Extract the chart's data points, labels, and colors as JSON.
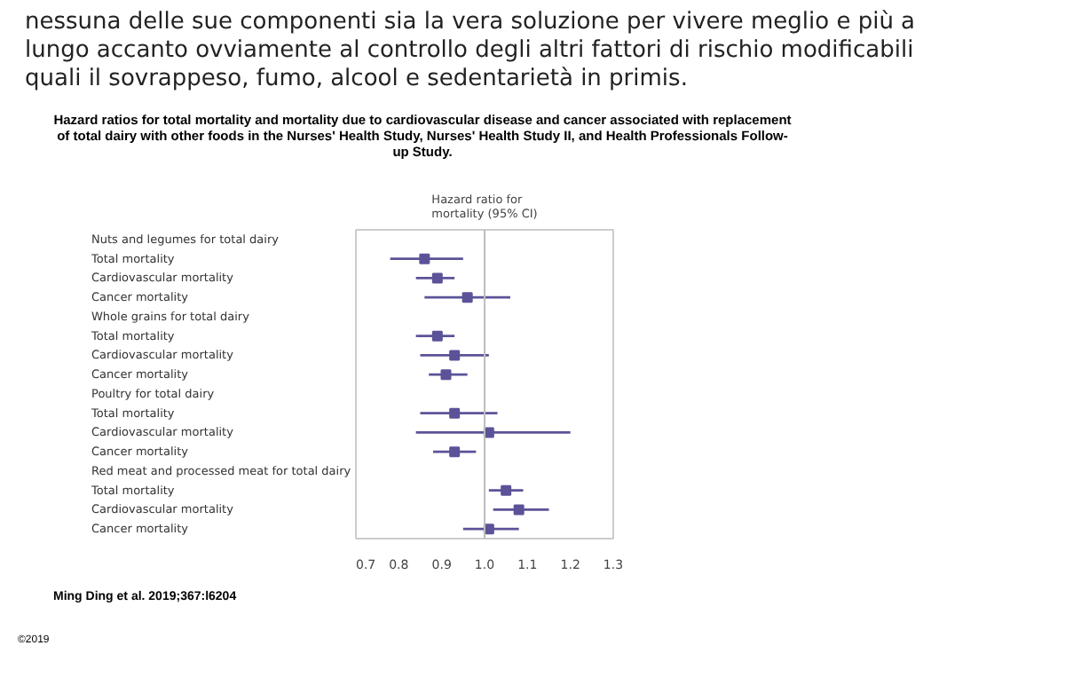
{
  "chart_data": {
    "type": "scatter",
    "orientation": "horizontal",
    "marker": "square",
    "grid": false,
    "title": "Hazard ratios for total mortality and mortality due to cardiovascular disease and cancer associated with replacement of total dairy with other foods in the Nurses' Health Study, Nurses' Health Study II, and Health Professionals Follow-up Study.",
    "xlabel": "Hazard ratio for mortality (95% CI)",
    "categories": [
      "Nuts and legumes for total dairy",
      "Total mortality",
      "Cardiovascular mortality",
      "Cancer mortality",
      "Whole grains for total dairy",
      "Total mortality",
      "Cardiovascular mortality",
      "Cancer mortality",
      "Poultry for total dairy",
      "Total mortality",
      "Cardiovascular mortality",
      "Cancer mortality",
      "Red meat and processed meat for total dairy",
      "Total mortality",
      "Cardiovascular mortality",
      "Cancer mortality"
    ],
    "series": [
      {
        "color": "#5b5398",
        "values": [
          null,
          0.86,
          0.89,
          0.96,
          null,
          0.89,
          0.93,
          0.91,
          null,
          0.93,
          1.01,
          0.93,
          null,
          1.05,
          1.08,
          1.01
        ],
        "errors": [
          null,
          [
            0.78,
            0.95
          ],
          [
            0.84,
            0.93
          ],
          [
            0.86,
            1.06
          ],
          null,
          [
            0.84,
            0.93
          ],
          [
            0.85,
            1.01
          ],
          [
            0.87,
            0.96
          ],
          null,
          [
            0.85,
            1.03
          ],
          [
            0.84,
            1.2
          ],
          [
            0.88,
            0.98
          ],
          null,
          [
            1.01,
            1.09
          ],
          [
            1.02,
            1.15
          ],
          [
            0.95,
            1.08
          ]
        ]
      }
    ],
    "xlim": [
      0.7,
      1.3
    ],
    "xticks": [
      0.7,
      0.8,
      0.9,
      {
        "value": 1,
        "label": "1.0"
      },
      1.1,
      1.2,
      1.3
    ],
    "ref_lines": [
      {
        "axis": "x",
        "value": 1,
        "color": "#bdbdbd"
      }
    ],
    "annotations": [
      "nessuna delle sue componenti sia la vera soluzione per vivere meglio e più a lungo accanto ovviamente al controllo degli altri fattori di rischio modificabili quali il sovrappeso, fumo, alcool e sedentarietà in primis.",
      "Ming Ding et al. 2019;367:l6204",
      "©2019"
    ]
  }
}
